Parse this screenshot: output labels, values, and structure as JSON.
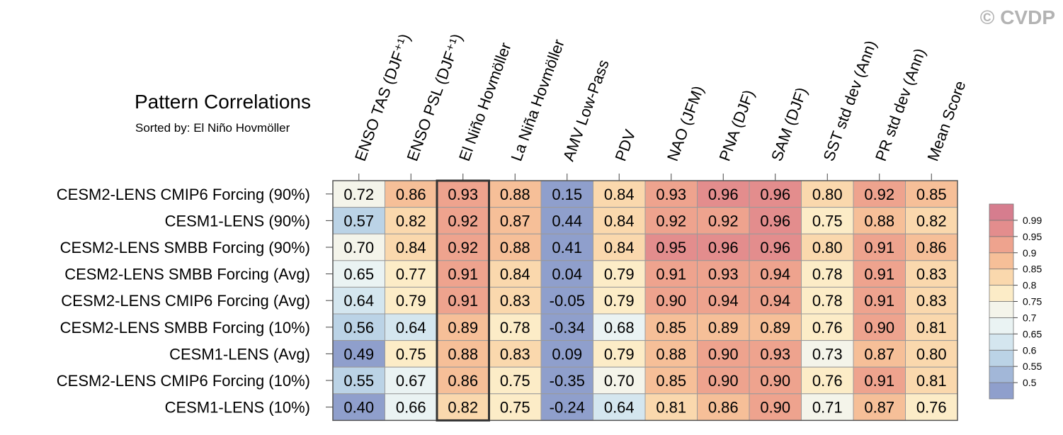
{
  "watermark": "© CVDP",
  "chart_data": {
    "type": "heatmap",
    "title": "Pattern Correlations",
    "subtitle": "Sorted by: El Niño Hovmöller",
    "columns": [
      "ENSO TAS (DJF⁺¹)",
      "ENSO PSL (DJF⁺¹)",
      "El Niño Hovmöller",
      "La Niña Hovmöller",
      "AMV Low-Pass",
      "PDV",
      "NAO (JFM)",
      "PNA (DJF)",
      "SAM (DJF)",
      "SST std dev (Ann)",
      "PR std dev (Ann)",
      "Mean Score"
    ],
    "rows": [
      "CESM2-LENS CMIP6 Forcing (90%)",
      "CESM1-LENS (90%)",
      "CESM2-LENS SMBB Forcing (90%)",
      "CESM2-LENS SMBB Forcing (Avg)",
      "CESM2-LENS CMIP6 Forcing (Avg)",
      "CESM2-LENS SMBB Forcing (10%)",
      "CESM1-LENS (Avg)",
      "CESM2-LENS CMIP6 Forcing (10%)",
      "CESM1-LENS (10%)"
    ],
    "values": [
      [
        "0.72",
        "0.86",
        "0.93",
        "0.88",
        "0.15",
        "0.84",
        "0.93",
        "0.96",
        "0.96",
        "0.80",
        "0.92",
        "0.85"
      ],
      [
        "0.57",
        "0.82",
        "0.92",
        "0.87",
        "0.44",
        "0.84",
        "0.92",
        "0.92",
        "0.96",
        "0.75",
        "0.88",
        "0.82"
      ],
      [
        "0.70",
        "0.84",
        "0.92",
        "0.88",
        "0.41",
        "0.84",
        "0.95",
        "0.96",
        "0.96",
        "0.80",
        "0.91",
        "0.86"
      ],
      [
        "0.65",
        "0.77",
        "0.91",
        "0.84",
        "0.04",
        "0.79",
        "0.91",
        "0.93",
        "0.94",
        "0.78",
        "0.91",
        "0.83"
      ],
      [
        "0.64",
        "0.79",
        "0.91",
        "0.83",
        "-0.05",
        "0.79",
        "0.90",
        "0.94",
        "0.94",
        "0.78",
        "0.91",
        "0.83"
      ],
      [
        "0.56",
        "0.64",
        "0.89",
        "0.78",
        "-0.34",
        "0.68",
        "0.85",
        "0.89",
        "0.89",
        "0.76",
        "0.90",
        "0.81"
      ],
      [
        "0.49",
        "0.75",
        "0.88",
        "0.83",
        "0.09",
        "0.79",
        "0.88",
        "0.90",
        "0.93",
        "0.73",
        "0.87",
        "0.80"
      ],
      [
        "0.55",
        "0.67",
        "0.86",
        "0.75",
        "-0.35",
        "0.70",
        "0.85",
        "0.90",
        "0.90",
        "0.76",
        "0.91",
        "0.81"
      ],
      [
        "0.40",
        "0.66",
        "0.82",
        "0.75",
        "-0.24",
        "0.64",
        "0.81",
        "0.86",
        "0.90",
        "0.71",
        "0.87",
        "0.76"
      ]
    ],
    "sorted_column": "El Niño Hovmöller",
    "colorbar": {
      "labels": [
        "0.99",
        "0.95",
        "0.9",
        "0.85",
        "0.8",
        "0.75",
        "0.7",
        "0.65",
        "0.6",
        "0.55",
        "0.5"
      ],
      "thresholds": [
        0.5,
        0.55,
        0.6,
        0.65,
        0.7,
        0.75,
        0.8,
        0.85,
        0.9,
        0.95,
        0.99
      ],
      "colors": [
        "#8f9fcc",
        "#a2b7d8",
        "#bbd3e6",
        "#d4e6ef",
        "#eaf3f3",
        "#f4f4ea",
        "#fcecc7",
        "#fad8ad",
        "#f6bf98",
        "#eea38e",
        "#e38d8d",
        "#d67d8e"
      ]
    }
  }
}
